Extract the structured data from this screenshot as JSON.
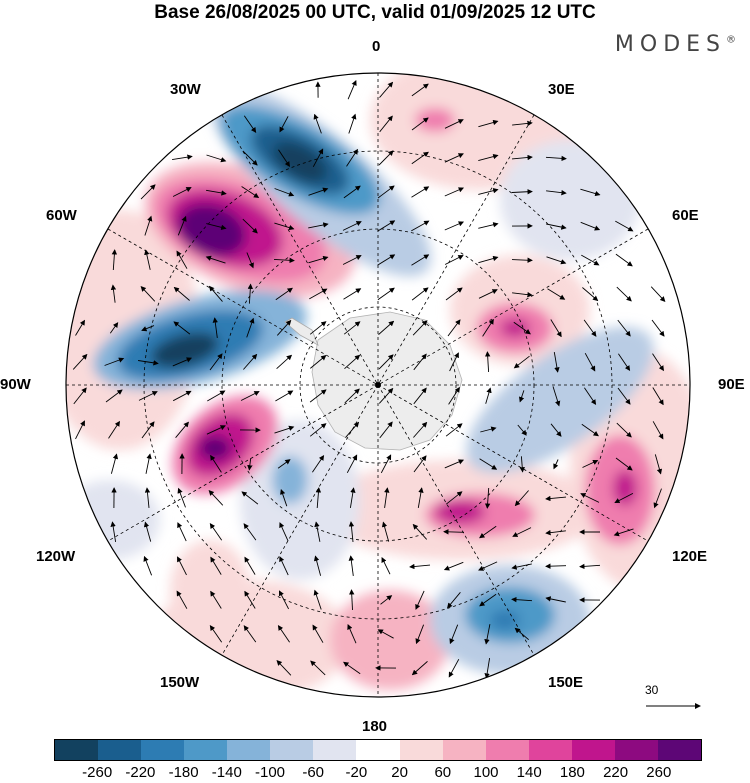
{
  "title": "Base 26/08/2025 00 UTC, valid 01/09/2025 12 UTC",
  "brand": "MODES",
  "brand_mark": "®",
  "longitude_labels": {
    "top": "0",
    "bottom": "180",
    "left": "90W",
    "right": "90E",
    "w30": "30W",
    "e30": "30E",
    "w60": "60W",
    "e60": "60E",
    "w120": "120W",
    "e120": "120E",
    "w150": "150W",
    "e150": "150E"
  },
  "vector_reference": "30",
  "colorbar": {
    "colors": [
      "#12415f",
      "#1a5e8e",
      "#2d7cb3",
      "#4e99c8",
      "#85b3d9",
      "#b9cce4",
      "#e1e4f0",
      "#ffffff",
      "#f9dada",
      "#f6b3c2",
      "#ef7dae",
      "#e0449c",
      "#c0158d",
      "#8d0a80",
      "#5d0676"
    ],
    "ticks": [
      "-260",
      "-220",
      "-180",
      "-140",
      "-100",
      "-60",
      "-20",
      "20",
      "60",
      "100",
      "140",
      "180",
      "220",
      "260"
    ]
  }
}
